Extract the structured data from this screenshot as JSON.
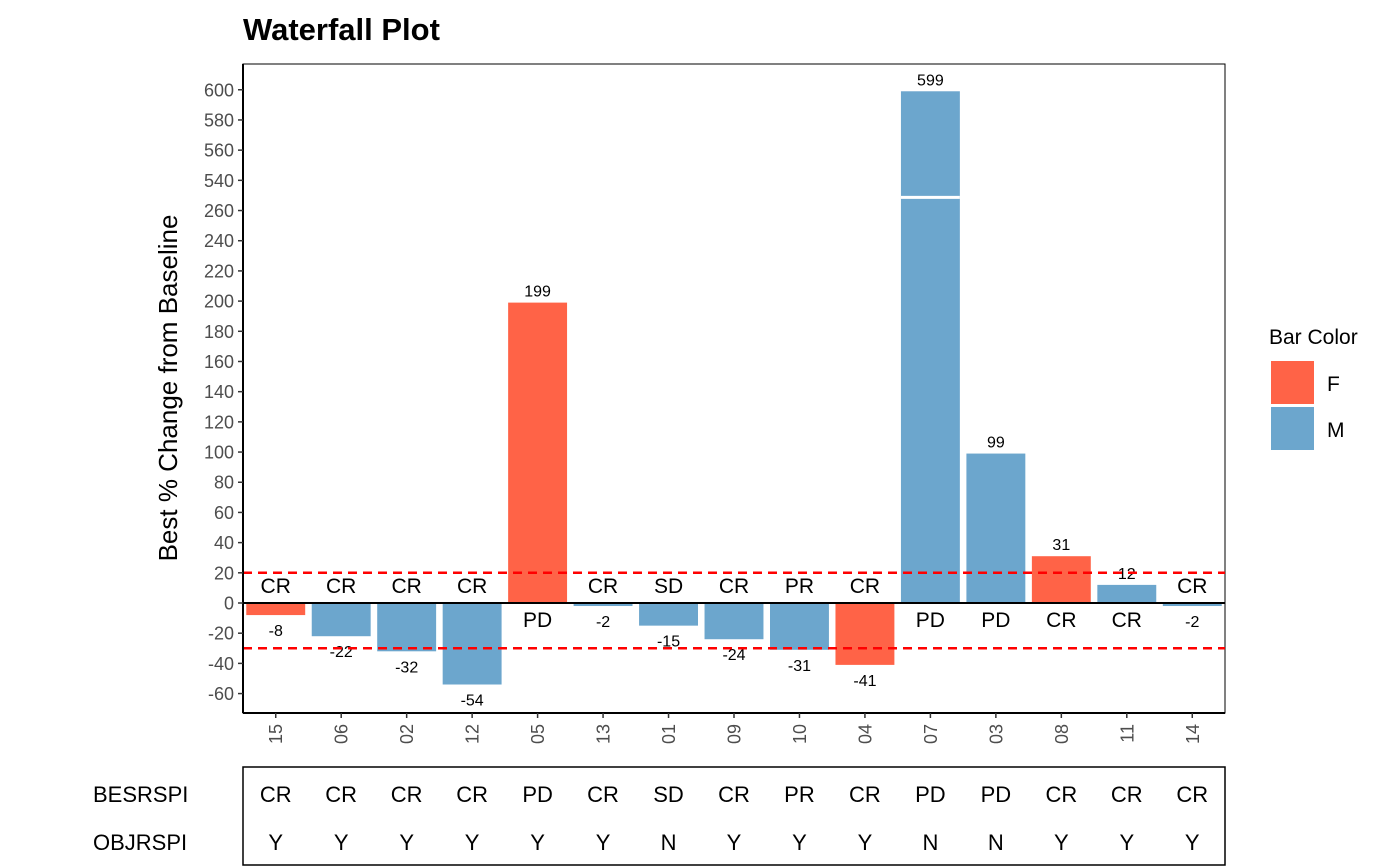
{
  "chart_data": {
    "type": "bar",
    "title": "Waterfall Plot",
    "xlabel": "",
    "ylabel": "Best % Change from Baseline",
    "y_axis_break": {
      "from": 270,
      "to": 530
    },
    "ylim": [
      -73,
      618
    ],
    "y_ticks": [
      -60,
      -40,
      -20,
      0,
      20,
      40,
      60,
      80,
      100,
      120,
      140,
      160,
      180,
      200,
      220,
      240,
      260,
      540,
      560,
      580,
      600
    ],
    "reference_lines": [
      20,
      -30
    ],
    "reference_line_color": "#FF0000",
    "grid": false,
    "legend": {
      "title": "Bar Color",
      "placement": "right",
      "entries": [
        {
          "label": "F",
          "color": "#FF6347"
        },
        {
          "label": "M",
          "color": "#6CA6CD"
        }
      ]
    },
    "categories": [
      "15",
      "06",
      "02",
      "12",
      "05",
      "13",
      "01",
      "09",
      "10",
      "04",
      "07",
      "03",
      "08",
      "11",
      "14"
    ],
    "values": [
      -8,
      -22,
      -32,
      -54,
      199,
      -2,
      -15,
      -24,
      -31,
      -41,
      599,
      99,
      31,
      12,
      -2
    ],
    "bar_group": [
      "F",
      "M",
      "M",
      "M",
      "F",
      "M",
      "M",
      "M",
      "M",
      "F",
      "M",
      "M",
      "F",
      "M",
      "M"
    ],
    "bar_labels": [
      "-8",
      "-22",
      "-32",
      "-54",
      "199",
      "-2",
      "-15",
      "-24",
      "-31",
      "-41",
      "599",
      "99",
      "31",
      "12",
      "-2"
    ],
    "response_labels": [
      "CR",
      "CR",
      "CR",
      "CR",
      "PD",
      "CR",
      "SD",
      "CR",
      "PR",
      "CR",
      "PD",
      "PD",
      "CR",
      "CR",
      "CR"
    ],
    "table": {
      "rows": [
        {
          "name": "BESRSPI",
          "values": [
            "CR",
            "CR",
            "CR",
            "CR",
            "PD",
            "CR",
            "SD",
            "CR",
            "PR",
            "CR",
            "PD",
            "PD",
            "CR",
            "CR",
            "CR"
          ]
        },
        {
          "name": "OBJRSPI",
          "values": [
            "Y",
            "Y",
            "Y",
            "Y",
            "Y",
            "Y",
            "N",
            "Y",
            "Y",
            "Y",
            "N",
            "N",
            "Y",
            "Y",
            "Y"
          ]
        }
      ]
    }
  }
}
